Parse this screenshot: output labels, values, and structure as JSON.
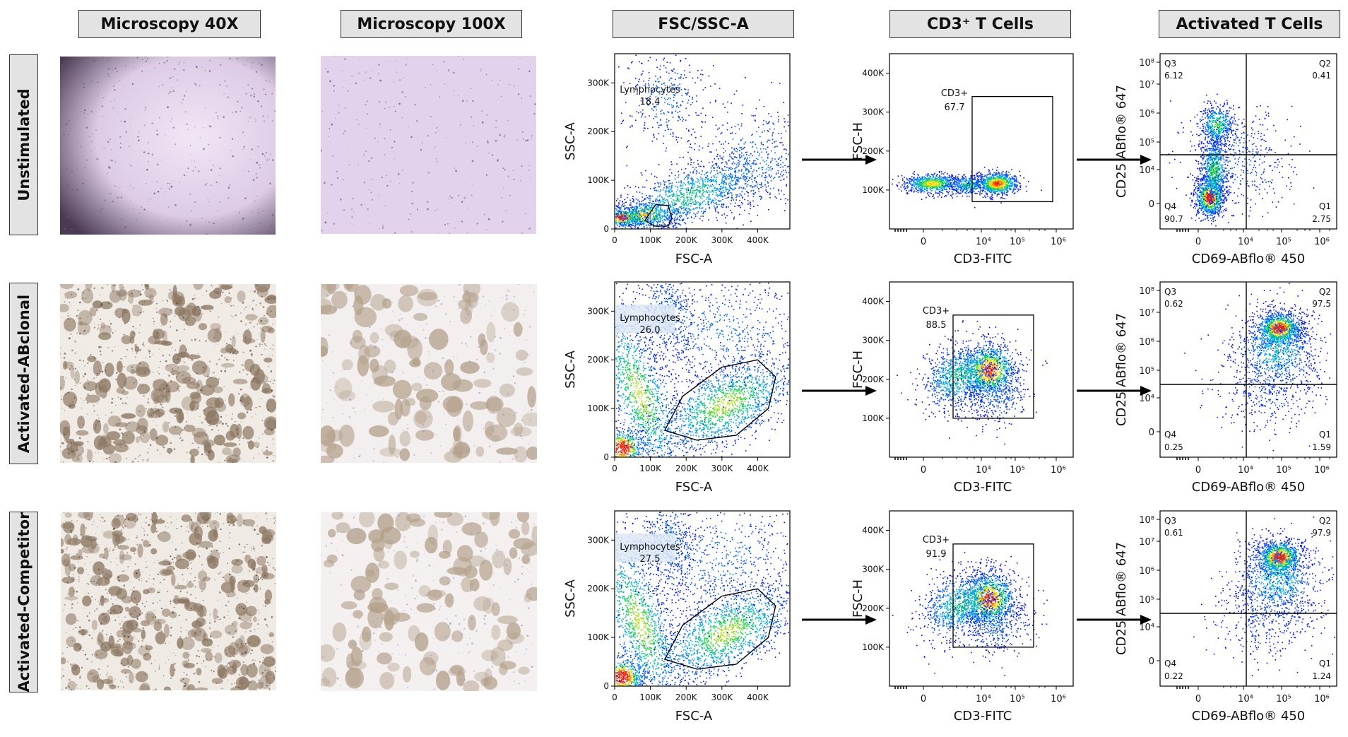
{
  "columns": [
    "Microscopy 40X",
    "Microscopy 100X",
    "FSC/SSC-A",
    "CD3⁺ T Cells",
    "Activated T Cells"
  ],
  "rows": [
    {
      "label": "Unstimulated",
      "lymphocytes_pct": "18.4",
      "cd3_pct": "67.7",
      "quadrants": {
        "Q1": "2.75",
        "Q2": "0.41",
        "Q3": "6.12",
        "Q4": "90.7"
      }
    },
    {
      "label": "Activated-ABclonal",
      "lymphocytes_pct": "26.0",
      "cd3_pct": "88.5",
      "quadrants": {
        "Q1": "1.59",
        "Q2": "97.5",
        "Q3": "0.62",
        "Q4": "0.25"
      }
    },
    {
      "label": "Activated-Competitor",
      "lymphocytes_pct": "27.5",
      "cd3_pct": "91.9",
      "quadrants": {
        "Q1": "1.24",
        "Q2": "97.9",
        "Q3": "0.61",
        "Q4": "0.22"
      }
    }
  ],
  "fsc_ssc": {
    "xlabel": "FSC-A",
    "ylabel": "SSC-A",
    "xticks": [
      "0",
      "100K",
      "200K",
      "300K",
      "400K"
    ],
    "yticks": [
      "0",
      "100K",
      "200K",
      "300K"
    ],
    "gate_label": "Lymphocytes"
  },
  "cd3_plot": {
    "xlabel": "CD3-FITC",
    "ylabel": "FSC-H",
    "xticks": [
      "0",
      "10⁴",
      "10⁵",
      "10⁶"
    ],
    "yticks": [
      "100K",
      "200K",
      "300K",
      "400K"
    ],
    "gate_label": "CD3+"
  },
  "activation_plot": {
    "xlabel": "CD69-ABflo® 450",
    "ylabel": "CD25 ABflo® 647",
    "xticks": [
      "0",
      "10⁴",
      "10⁵",
      "10⁶"
    ],
    "yticks": [
      "0",
      "10⁴",
      "10⁵",
      "10⁶",
      "10⁷",
      "10⁸"
    ]
  },
  "colors": {
    "header_bg": "#e3e3e3",
    "unstim_micro": "#e2d3ec",
    "activated_micro": "#efe8e2",
    "cluster": "#8e7b64"
  }
}
